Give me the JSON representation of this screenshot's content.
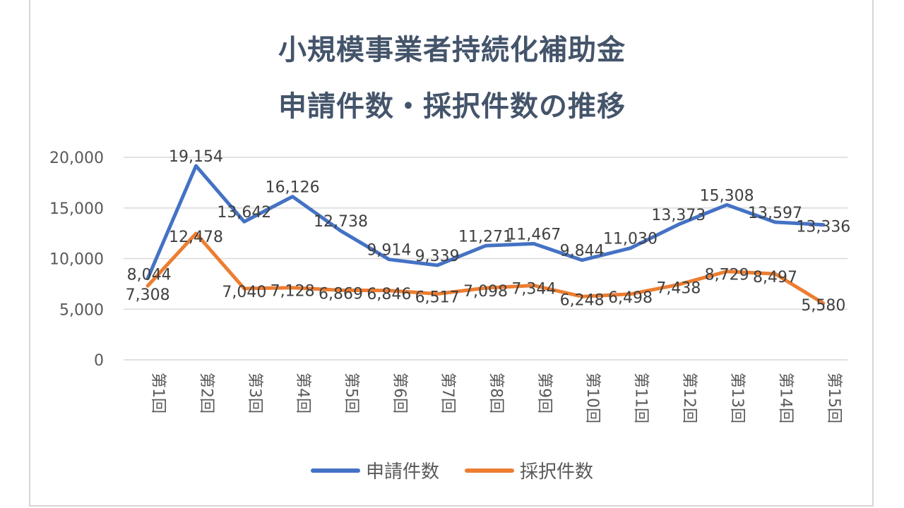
{
  "title_line1": "小規模事業者持続化補助金",
  "title_line2": "申請件数・採択件数の推移",
  "chart_data": {
    "type": "line",
    "categories": [
      "第1回",
      "第2回",
      "第3回",
      "第4回",
      "第5回",
      "第6回",
      "第7回",
      "第8回",
      "第9回",
      "第10回",
      "第11回",
      "第12回",
      "第13回",
      "第14回",
      "第15回"
    ],
    "ylim": [
      0,
      20000
    ],
    "yticks": [
      "0",
      "5,000",
      "10,000",
      "15,000",
      "20,000"
    ],
    "grid": true,
    "legend_position": "bottom",
    "series": [
      {
        "name": "申請件数",
        "color": "#4472c4",
        "values": [
          8044,
          19154,
          13642,
          16126,
          12738,
          9914,
          9339,
          11271,
          11467,
          9844,
          11030,
          13373,
          15308,
          13597,
          13336
        ],
        "labels": [
          "8,044",
          "19,154",
          "13,642",
          "16,126",
          "12,738",
          "9,914",
          "9,339",
          "11,271",
          "11,467",
          "9,844",
          "11,030",
          "13,373",
          "15,308",
          "13,597",
          "13,336"
        ]
      },
      {
        "name": "採択件数",
        "color": "#ed7d31",
        "values": [
          7308,
          12478,
          7040,
          7128,
          6869,
          6846,
          6517,
          7098,
          7344,
          6248,
          6498,
          7438,
          8729,
          8497,
          5580
        ],
        "labels": [
          "7,308",
          "12,478",
          "7,040",
          "7,128",
          "6,869",
          "6,846",
          "6,517",
          "7,098",
          "7,344",
          "6,248",
          "6,498",
          "7,438",
          "8,729",
          "8,497",
          "5,580"
        ]
      }
    ]
  }
}
